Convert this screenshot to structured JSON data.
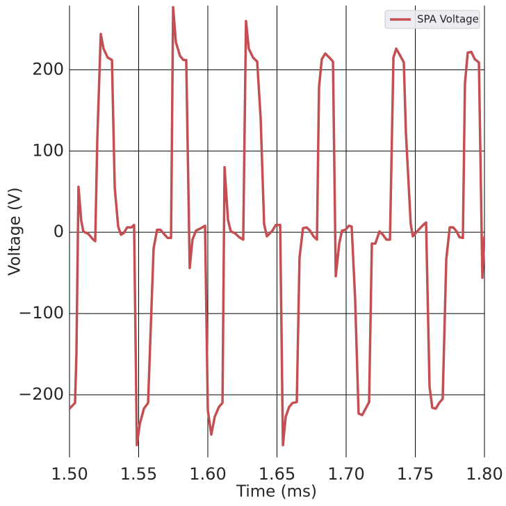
{
  "chart_data": {
    "type": "line",
    "xlabel": "Time (ms)",
    "ylabel": "Voltage (V)",
    "x": [
      1.5,
      1.504,
      1.505,
      1.5065,
      1.5085,
      1.51,
      1.5136,
      1.5166,
      1.5186,
      1.5201,
      1.5226,
      1.5246,
      1.5276,
      1.5307,
      1.5327,
      1.5352,
      1.5372,
      1.5392,
      1.5417,
      1.5447,
      1.5467,
      1.5487,
      1.5508,
      1.5538,
      1.5568,
      1.5608,
      1.5633,
      1.5658,
      1.5683,
      1.5709,
      1.5734,
      1.5749,
      1.5769,
      1.5799,
      1.5824,
      1.5844,
      1.5869,
      1.5889,
      1.5915,
      1.595,
      1.598,
      1.6,
      1.6025,
      1.605,
      1.608,
      1.6106,
      1.6121,
      1.6146,
      1.6166,
      1.6196,
      1.6226,
      1.6256,
      1.6276,
      1.6296,
      1.6327,
      1.6357,
      1.6382,
      1.6407,
      1.6427,
      1.6467,
      1.6492,
      1.6523,
      1.6543,
      1.6563,
      1.6588,
      1.6613,
      1.6643,
      1.6663,
      1.6688,
      1.6714,
      1.6739,
      1.6764,
      1.6789,
      1.6804,
      1.6824,
      1.6849,
      1.6879,
      1.6905,
      1.6925,
      1.695,
      1.697,
      1.6995,
      1.702,
      1.704,
      1.7065,
      1.709,
      1.7116,
      1.7141,
      1.7166,
      1.7186,
      1.7211,
      1.7241,
      1.7266,
      1.7291,
      1.7317,
      1.7342,
      1.7362,
      1.7392,
      1.7417,
      1.7432,
      1.7467,
      1.7482,
      1.7523,
      1.7563,
      1.7578,
      1.7603,
      1.7623,
      1.7648,
      1.7673,
      1.7698,
      1.7724,
      1.7749,
      1.7774,
      1.7799,
      1.7819,
      1.7844,
      1.7859,
      1.7879,
      1.7905,
      1.793,
      1.796,
      1.7985,
      1.8
    ],
    "series": [
      {
        "name": "SPA Voltage",
        "color": "#c44e52",
        "values": [
          -217,
          -210,
          -150,
          56,
          14,
          1,
          -2,
          -8,
          -11,
          115,
          244,
          226,
          215,
          212,
          55,
          7,
          -3,
          -1,
          6,
          6,
          9,
          -262,
          -236,
          -217,
          -210,
          -20,
          3,
          3,
          -2,
          -7,
          -7,
          277,
          234,
          217,
          212,
          212,
          -44,
          -9,
          2,
          5,
          8,
          -219,
          -249,
          -227,
          -215,
          -210,
          80,
          15,
          1,
          -1,
          -6,
          -9,
          260,
          226,
          215,
          210,
          140,
          10,
          -5,
          2,
          9,
          9,
          -262,
          -227,
          -215,
          -210,
          -209,
          -31,
          5,
          6,
          2,
          -5,
          -9,
          179,
          213,
          220,
          215,
          210,
          -54,
          -14,
          2,
          3,
          8,
          7,
          -82,
          -223,
          -225,
          -217,
          -209,
          -14,
          -14,
          1,
          -3,
          -9,
          -9,
          215,
          226,
          217,
          209,
          123,
          10,
          -5,
          3,
          10,
          12,
          -190,
          -216,
          -217,
          -210,
          -205,
          -33,
          6,
          6,
          1,
          -6,
          -7,
          183,
          221,
          222,
          213,
          209,
          -56,
          -5
        ]
      }
    ],
    "xlim": [
      1.5,
      1.8
    ],
    "xticks": [
      {
        "value": 1.5,
        "label": "1.50"
      },
      1.55,
      {
        "value": 1.6,
        "label": "1.60"
      },
      1.65,
      {
        "value": 1.7,
        "label": "1.70"
      },
      1.75,
      {
        "value": 1.8,
        "label": "1.80"
      }
    ],
    "ylim": [
      -277,
      279
    ],
    "yticks": [
      {
        "value": -200,
        "label": "−200"
      },
      {
        "value": -100,
        "label": "−100"
      },
      0,
      100,
      200
    ],
    "grid": true,
    "legend": "upper right"
  }
}
